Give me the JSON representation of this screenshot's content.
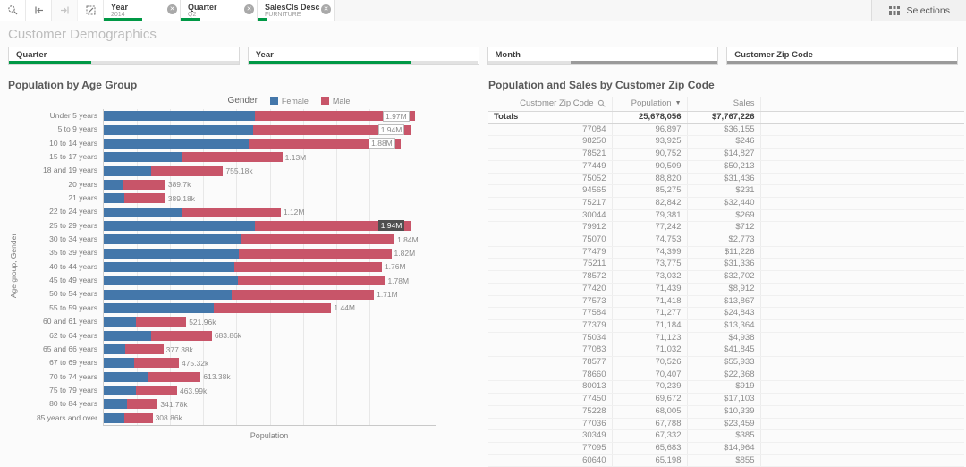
{
  "colors": {
    "selected_green": "#009845",
    "alternative_gray": "#e2e2e2",
    "excluded_gray": "#9a9a9a",
    "female_blue": "#4477aa",
    "male_red": "#c85569"
  },
  "toolbar": {
    "selections_label": "Selections",
    "chips": [
      {
        "field": "Year",
        "value": "2014",
        "selected_pct": 50
      },
      {
        "field": "Quarter",
        "value": "Q2",
        "selected_pct": 26
      },
      {
        "field": "SalesCls Desc",
        "value": "FURNITURE",
        "selected_pct": 12
      }
    ]
  },
  "page": {
    "title": "Customer Demographics"
  },
  "filters": [
    {
      "label": "Quarter",
      "segments": [
        {
          "state": "selected",
          "pct": 36
        },
        {
          "state": "alternative",
          "pct": 64
        }
      ]
    },
    {
      "label": "Year",
      "segments": [
        {
          "state": "selected",
          "pct": 71
        },
        {
          "state": "alternative",
          "pct": 29
        }
      ]
    },
    {
      "label": "Month",
      "segments": [
        {
          "state": "alternative",
          "pct": 36
        },
        {
          "state": "excluded",
          "pct": 64
        }
      ]
    },
    {
      "label": "Customer Zip Code",
      "segments": [
        {
          "state": "excluded",
          "pct": 100
        }
      ]
    }
  ],
  "chart_data": {
    "type": "bar",
    "orientation": "horizontal",
    "stacked": true,
    "title": "Population by Age Group",
    "legend_title": "Gender",
    "legend_position": "top",
    "xlabel": "Population",
    "ylabel": "Age group, Gender",
    "xlim": [
      0,
      2100000
    ],
    "grid": true,
    "series": [
      {
        "name": "Female",
        "color": "#4477aa"
      },
      {
        "name": "Male",
        "color": "#c85569"
      }
    ],
    "bars": [
      {
        "category": "Under 5 years",
        "female": 958000,
        "male": 1012000,
        "total_label": "1.97M",
        "label_style": "boxed"
      },
      {
        "category": "5 to 9 years",
        "female": 947000,
        "male": 993000,
        "total_label": "1.94M",
        "label_style": "boxed"
      },
      {
        "category": "10 to 14 years",
        "female": 917000,
        "male": 963000,
        "total_label": "1.88M",
        "label_style": "boxed"
      },
      {
        "category": "15 to 17 years",
        "female": 492000,
        "male": 638000,
        "total_label": "1.13M",
        "label_style": "plain"
      },
      {
        "category": "18 and 19 years",
        "female": 302000,
        "male": 453180,
        "total_label": "755.18k",
        "label_style": "plain"
      },
      {
        "category": "20 years",
        "female": 124700,
        "male": 265000,
        "total_label": "389.7k",
        "label_style": "plain"
      },
      {
        "category": "21 years",
        "female": 132300,
        "male": 256880,
        "total_label": "389.18k",
        "label_style": "plain"
      },
      {
        "category": "22 to 24 years",
        "female": 500000,
        "male": 620000,
        "total_label": "1.12M",
        "label_style": "plain"
      },
      {
        "category": "25 to 29 years",
        "female": 958000,
        "male": 982000,
        "total_label": "1.94M",
        "label_style": "dark"
      },
      {
        "category": "30 to 34 years",
        "female": 865000,
        "male": 975000,
        "total_label": "1.84M",
        "label_style": "plain"
      },
      {
        "category": "35 to 39 years",
        "female": 855000,
        "male": 965000,
        "total_label": "1.82M",
        "label_style": "plain"
      },
      {
        "category": "40 to 44 years",
        "female": 827000,
        "male": 933000,
        "total_label": "1.76M",
        "label_style": "plain"
      },
      {
        "category": "45 to 49 years",
        "female": 851000,
        "male": 929000,
        "total_label": "1.78M",
        "label_style": "plain"
      },
      {
        "category": "50 to 54 years",
        "female": 812000,
        "male": 898000,
        "total_label": "1.71M",
        "label_style": "plain"
      },
      {
        "category": "55 to 59 years",
        "female": 698000,
        "male": 742000,
        "total_label": "1.44M",
        "label_style": "plain"
      },
      {
        "category": "60 and 61 years",
        "female": 203600,
        "male": 318360,
        "total_label": "521.96k",
        "label_style": "plain"
      },
      {
        "category": "62 to 64 years",
        "female": 300900,
        "male": 382960,
        "total_label": "683.86k",
        "label_style": "plain"
      },
      {
        "category": "65 and 66 years",
        "female": 135900,
        "male": 241480,
        "total_label": "377.38k",
        "label_style": "plain"
      },
      {
        "category": "67 to 69 years",
        "female": 194900,
        "male": 280420,
        "total_label": "475.32k",
        "label_style": "plain"
      },
      {
        "category": "70 to 74 years",
        "female": 276000,
        "male": 337380,
        "total_label": "613.38k",
        "label_style": "plain"
      },
      {
        "category": "75 to 79 years",
        "female": 204200,
        "male": 259790,
        "total_label": "463.99k",
        "label_style": "plain"
      },
      {
        "category": "80 to 84 years",
        "female": 147000,
        "male": 194780,
        "total_label": "341.78k",
        "label_style": "plain"
      },
      {
        "category": "85 years and over",
        "female": 132800,
        "male": 176060,
        "total_label": "308.86k",
        "label_style": "plain"
      }
    ]
  },
  "table": {
    "title": "Population and Sales by Customer Zip Code",
    "columns": [
      "Customer Zip Code",
      "Population",
      "Sales"
    ],
    "sort_indicator": "▼",
    "totals_label": "Totals",
    "totals": {
      "population": "25,678,056",
      "sales": "$7,767,226"
    },
    "rows": [
      [
        "77084",
        "96,897",
        "$36,155"
      ],
      [
        "98250",
        "93,925",
        "$246"
      ],
      [
        "78521",
        "90,752",
        "$14,827"
      ],
      [
        "77449",
        "90,509",
        "$50,213"
      ],
      [
        "75052",
        "88,820",
        "$31,436"
      ],
      [
        "94565",
        "85,275",
        "$231"
      ],
      [
        "75217",
        "82,842",
        "$32,440"
      ],
      [
        "30044",
        "79,381",
        "$269"
      ],
      [
        "79912",
        "77,242",
        "$712"
      ],
      [
        "75070",
        "74,753",
        "$2,773"
      ],
      [
        "77479",
        "74,399",
        "$11,226"
      ],
      [
        "75211",
        "73,775",
        "$31,336"
      ],
      [
        "78572",
        "73,032",
        "$32,702"
      ],
      [
        "77420",
        "71,439",
        "$8,912"
      ],
      [
        "77573",
        "71,418",
        "$13,867"
      ],
      [
        "77584",
        "71,277",
        "$24,843"
      ],
      [
        "77379",
        "71,184",
        "$13,364"
      ],
      [
        "75034",
        "71,123",
        "$4,938"
      ],
      [
        "77083",
        "71,032",
        "$41,845"
      ],
      [
        "78577",
        "70,526",
        "$55,933"
      ],
      [
        "78660",
        "70,407",
        "$22,368"
      ],
      [
        "80013",
        "70,239",
        "$919"
      ],
      [
        "77450",
        "69,672",
        "$17,103"
      ],
      [
        "75228",
        "68,005",
        "$10,339"
      ],
      [
        "77036",
        "67,788",
        "$23,459"
      ],
      [
        "30349",
        "67,332",
        "$385"
      ],
      [
        "77095",
        "65,683",
        "$14,964"
      ],
      [
        "60640",
        "65,198",
        "$855"
      ]
    ]
  }
}
